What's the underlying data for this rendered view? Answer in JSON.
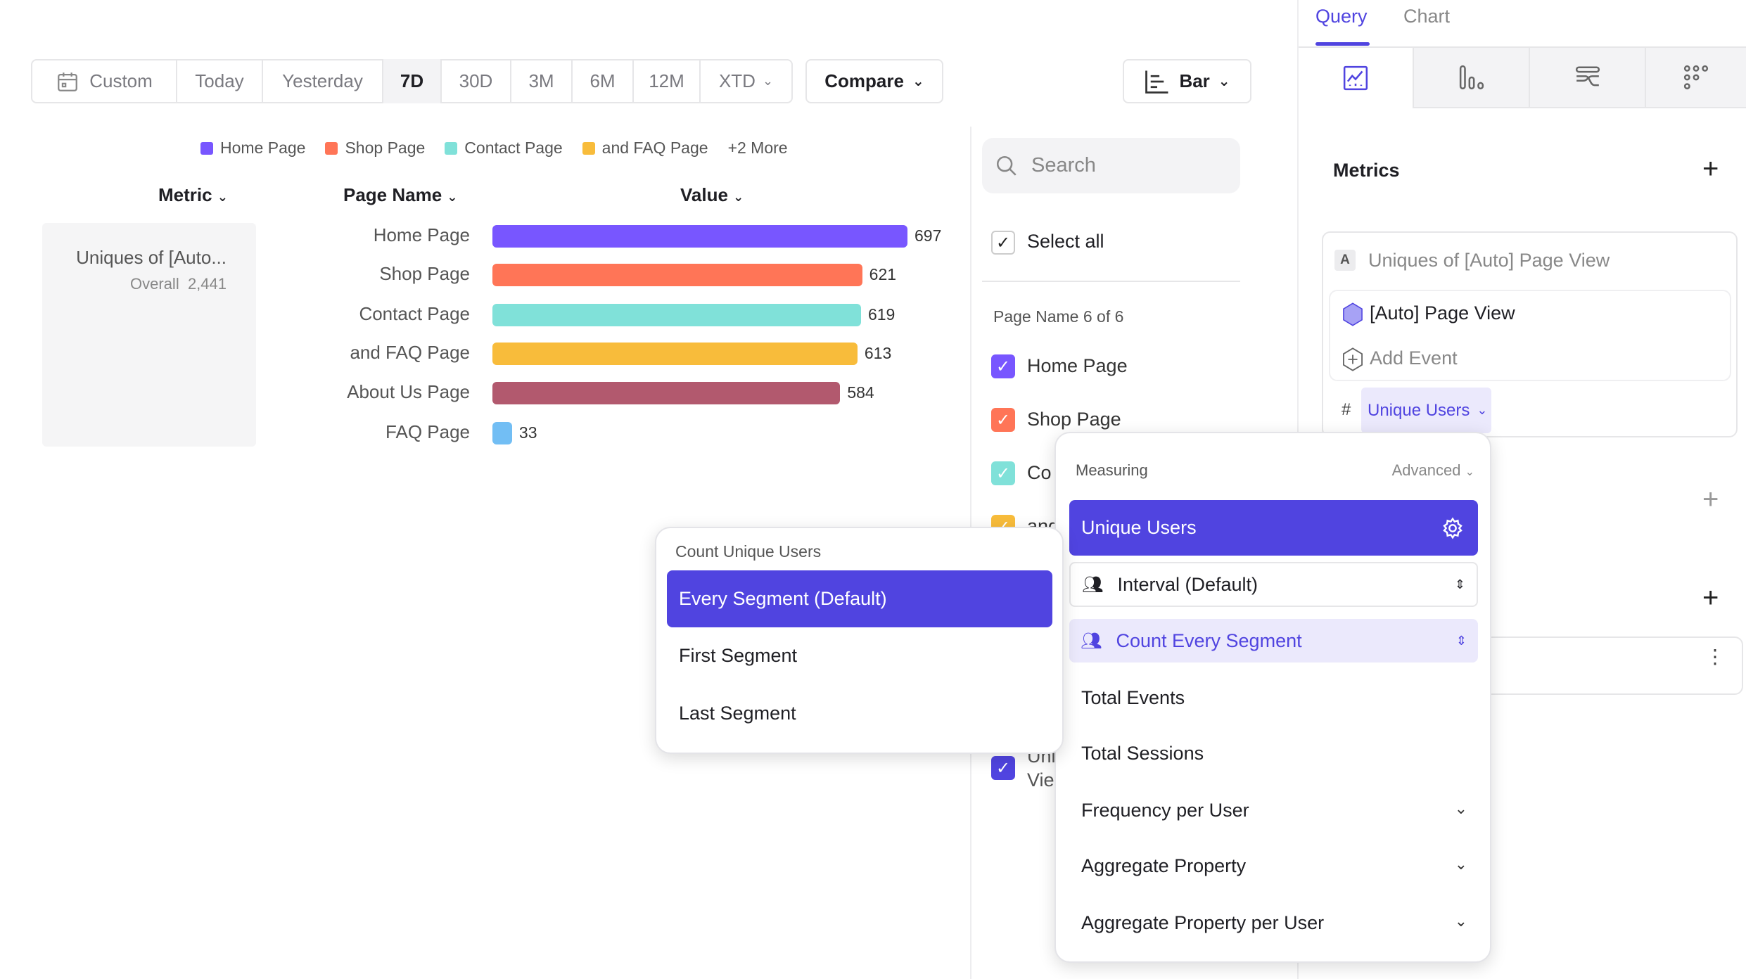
{
  "toolbar": {
    "date_ranges": [
      "Custom",
      "Today",
      "Yesterday",
      "7D",
      "30D",
      "3M",
      "6M",
      "12M",
      "XTD"
    ],
    "selected_range": "7D",
    "compare_label": "Compare",
    "chart_type_label": "Bar"
  },
  "legend": {
    "items": [
      "Home Page",
      "Shop Page",
      "Contact Page",
      "and FAQ Page"
    ],
    "more": "+2 More"
  },
  "columns": {
    "metric": "Metric",
    "page_name": "Page Name",
    "value": "Value"
  },
  "metric_card": {
    "name": "Uniques of [Auto...",
    "overall_label": "Overall",
    "overall_value": "2,441"
  },
  "chart_data": {
    "type": "bar",
    "orientation": "horizontal",
    "categories": [
      "Home Page",
      "Shop Page",
      "Contact Page",
      "and FAQ Page",
      "About Us Page",
      "FAQ Page"
    ],
    "values": [
      697,
      621,
      619,
      613,
      584,
      33
    ],
    "colors": [
      "#7856ff",
      "#ff7557",
      "#80e1d9",
      "#f8bc3b",
      "#b2596e",
      "#72bef4"
    ]
  },
  "filter": {
    "search_placeholder": "Search",
    "select_all": "Select all",
    "group_label": "Page Name 6 of 6",
    "items": [
      "Home Page",
      "Shop Page",
      "Co",
      "and"
    ],
    "hidden_item_lines": [
      "Uni",
      "Vie"
    ]
  },
  "right_panel": {
    "tabs": [
      "Query",
      "Chart"
    ],
    "active_tab": "Query",
    "metrics_title": "Metrics",
    "metric_letter": "A",
    "metric_title": "Uniques of [Auto] Page View",
    "event_name": "[Auto] Page View",
    "add_event": "Add Event",
    "hash": "#",
    "measure_chip": "Unique Users"
  },
  "measuring_popover": {
    "title": "Measuring",
    "advanced": "Advanced",
    "selected": "Unique Users",
    "interval": "Interval (Default)",
    "count_mode": "Count Every Segment",
    "options": [
      "Total Events",
      "Total Sessions",
      "Frequency per User",
      "Aggregate Property",
      "Aggregate Property per User"
    ]
  },
  "count_popover": {
    "title": "Count Unique Users",
    "options": [
      "Every Segment (Default)",
      "First Segment",
      "Last Segment"
    ]
  },
  "colors": {
    "accent": "#5044e0",
    "accent_light": "#ebe9fc"
  }
}
